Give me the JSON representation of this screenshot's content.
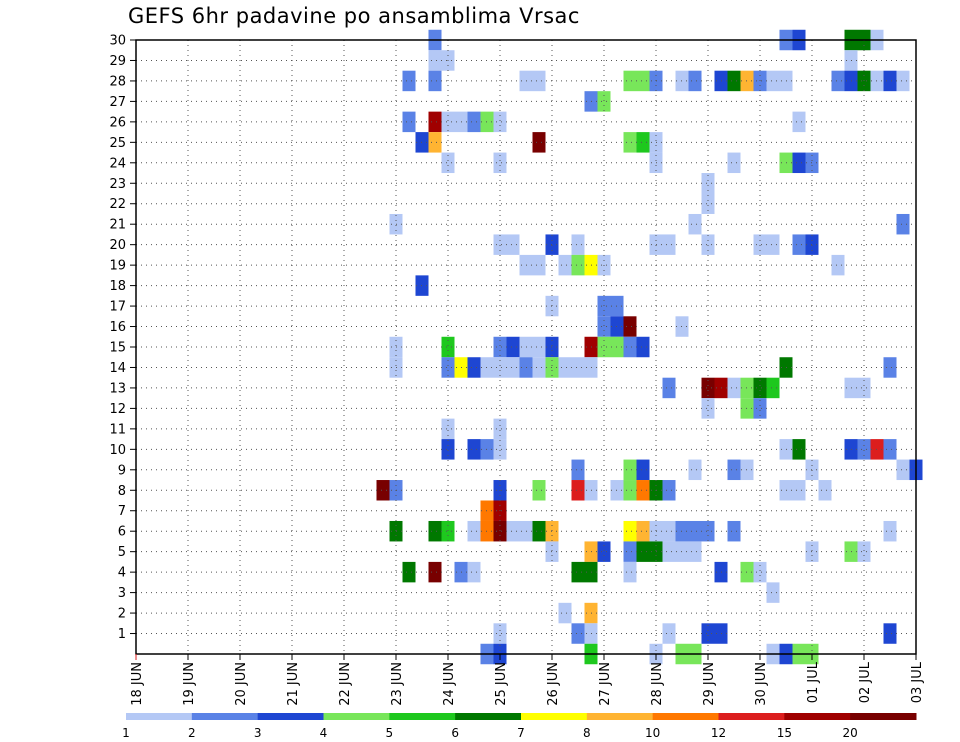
{
  "chart_data": {
    "type": "heatmap",
    "title": "GEFS 6hr padavine po ansamblima Vrsac",
    "xlabel": "",
    "ylabel": "",
    "grid": true,
    "x_tick_labels": [
      "18 JUN",
      "19 JUN",
      "20 JUN",
      "21 JUN",
      "22 JUN",
      "23 JUN",
      "24 JUN",
      "25 JUN",
      "26 JUN",
      "27 JUN",
      "28 JUN",
      "29 JUN",
      "30 JUN",
      "01 JUL",
      "02 JUL",
      "03 JUL"
    ],
    "y_tick_labels": [
      "1",
      "2",
      "3",
      "4",
      "5",
      "6",
      "7",
      "8",
      "9",
      "10",
      "11",
      "12",
      "13",
      "14",
      "15",
      "16",
      "17",
      "18",
      "19",
      "20",
      "21",
      "22",
      "23",
      "24",
      "25",
      "26",
      "27",
      "28",
      "29",
      "30"
    ],
    "x_range_days": [
      0,
      15
    ],
    "y_range": [
      0,
      30
    ],
    "colorbar": {
      "labels": [
        "1",
        "2",
        "3",
        "4",
        "5",
        "6",
        "7",
        "8",
        "10",
        "12",
        "15",
        "20"
      ],
      "colors": [
        "#b4c8f5",
        "#5a82e6",
        "#1e46d2",
        "#78e65a",
        "#1ec81e",
        "#007800",
        "#ffff00",
        "#ffb432",
        "#ff7800",
        "#dc1e1e",
        "#a00000",
        "#780000"
      ]
    },
    "cell_levels": "1..12 index into colorbar.colors; x in days from 18 JUN (6-hour steps), y = ensemble member",
    "cells": [
      [
        12.5,
        30,
        2
      ],
      [
        12.75,
        30,
        3
      ],
      [
        13.75,
        30,
        6
      ],
      [
        14.0,
        30,
        6
      ],
      [
        14.25,
        30,
        1
      ],
      [
        5.75,
        30,
        2
      ],
      [
        5.75,
        29,
        1
      ],
      [
        6.0,
        29,
        1
      ],
      [
        13.75,
        29,
        1
      ],
      [
        5.25,
        28,
        2
      ],
      [
        5.75,
        28,
        2
      ],
      [
        7.5,
        28,
        1
      ],
      [
        7.75,
        28,
        1
      ],
      [
        9.5,
        28,
        4
      ],
      [
        9.75,
        28,
        4
      ],
      [
        10.0,
        28,
        2
      ],
      [
        10.5,
        28,
        1
      ],
      [
        10.75,
        28,
        2
      ],
      [
        11.25,
        28,
        3
      ],
      [
        11.5,
        28,
        6
      ],
      [
        11.75,
        28,
        8
      ],
      [
        12.0,
        28,
        2
      ],
      [
        12.25,
        28,
        1
      ],
      [
        12.5,
        28,
        1
      ],
      [
        13.5,
        28,
        2
      ],
      [
        13.75,
        28,
        3
      ],
      [
        14.0,
        28,
        6
      ],
      [
        14.25,
        28,
        1
      ],
      [
        14.5,
        28,
        3
      ],
      [
        14.75,
        28,
        1
      ],
      [
        8.75,
        27,
        2
      ],
      [
        9.0,
        27,
        4
      ],
      [
        5.25,
        26,
        2
      ],
      [
        5.75,
        26,
        11
      ],
      [
        6.0,
        26,
        1
      ],
      [
        6.25,
        26,
        1
      ],
      [
        6.5,
        26,
        2
      ],
      [
        6.75,
        26,
        4
      ],
      [
        7.0,
        26,
        1
      ],
      [
        12.75,
        26,
        1
      ],
      [
        5.5,
        25,
        3
      ],
      [
        5.75,
        25,
        8
      ],
      [
        7.75,
        25,
        12
      ],
      [
        9.5,
        25,
        4
      ],
      [
        9.75,
        25,
        5
      ],
      [
        10.0,
        25,
        1
      ],
      [
        6.0,
        24,
        1
      ],
      [
        7.0,
        24,
        1
      ],
      [
        10.0,
        24,
        1
      ],
      [
        11.5,
        24,
        1
      ],
      [
        12.5,
        24,
        4
      ],
      [
        12.75,
        24,
        3
      ],
      [
        13.0,
        24,
        2
      ],
      [
        11.0,
        23,
        1
      ],
      [
        11.0,
        22,
        1
      ],
      [
        5.0,
        21,
        1
      ],
      [
        10.75,
        21,
        1
      ],
      [
        14.75,
        21,
        2
      ],
      [
        7.0,
        20,
        1
      ],
      [
        7.25,
        20,
        1
      ],
      [
        8.0,
        20,
        3
      ],
      [
        8.5,
        20,
        1
      ],
      [
        10.0,
        20,
        1
      ],
      [
        10.25,
        20,
        1
      ],
      [
        11.0,
        20,
        1
      ],
      [
        12.0,
        20,
        1
      ],
      [
        12.25,
        20,
        1
      ],
      [
        12.75,
        20,
        2
      ],
      [
        13.0,
        20,
        3
      ],
      [
        7.5,
        19,
        1
      ],
      [
        7.75,
        19,
        1
      ],
      [
        8.25,
        19,
        1
      ],
      [
        8.5,
        19,
        4
      ],
      [
        8.75,
        19,
        7
      ],
      [
        9.0,
        19,
        1
      ],
      [
        13.5,
        19,
        1
      ],
      [
        5.5,
        18,
        3
      ],
      [
        8.0,
        17,
        1
      ],
      [
        9.0,
        17,
        2
      ],
      [
        9.25,
        17,
        2
      ],
      [
        9.0,
        16,
        2
      ],
      [
        9.25,
        16,
        3
      ],
      [
        9.5,
        16,
        12
      ],
      [
        10.5,
        16,
        1
      ],
      [
        5.0,
        15,
        1
      ],
      [
        6.0,
        15,
        5
      ],
      [
        7.0,
        15,
        2
      ],
      [
        7.25,
        15,
        3
      ],
      [
        7.5,
        15,
        1
      ],
      [
        7.75,
        15,
        1
      ],
      [
        8.0,
        15,
        3
      ],
      [
        8.75,
        15,
        11
      ],
      [
        9.0,
        15,
        4
      ],
      [
        9.25,
        15,
        4
      ],
      [
        9.5,
        15,
        2
      ],
      [
        9.75,
        15,
        3
      ],
      [
        5.0,
        14,
        1
      ],
      [
        6.0,
        14,
        2
      ],
      [
        6.25,
        14,
        7
      ],
      [
        6.5,
        14,
        3
      ],
      [
        6.75,
        14,
        1
      ],
      [
        7.0,
        14,
        1
      ],
      [
        7.25,
        14,
        1
      ],
      [
        7.5,
        14,
        2
      ],
      [
        7.75,
        14,
        1
      ],
      [
        8.0,
        14,
        4
      ],
      [
        8.25,
        14,
        1
      ],
      [
        8.5,
        14,
        1
      ],
      [
        8.75,
        14,
        1
      ],
      [
        12.5,
        14,
        6
      ],
      [
        14.5,
        14,
        2
      ],
      [
        10.25,
        13,
        2
      ],
      [
        11.0,
        13,
        12
      ],
      [
        11.25,
        13,
        11
      ],
      [
        11.5,
        13,
        1
      ],
      [
        11.75,
        13,
        4
      ],
      [
        12.0,
        13,
        6
      ],
      [
        12.25,
        13,
        5
      ],
      [
        13.75,
        13,
        1
      ],
      [
        14.0,
        13,
        1
      ],
      [
        11.0,
        12,
        1
      ],
      [
        11.75,
        12,
        4
      ],
      [
        12.0,
        12,
        2
      ],
      [
        6.0,
        11,
        1
      ],
      [
        7.0,
        11,
        1
      ],
      [
        6.0,
        10,
        3
      ],
      [
        6.5,
        10,
        3
      ],
      [
        6.75,
        10,
        2
      ],
      [
        7.0,
        10,
        1
      ],
      [
        12.5,
        10,
        1
      ],
      [
        12.75,
        10,
        6
      ],
      [
        13.75,
        10,
        3
      ],
      [
        14.0,
        10,
        2
      ],
      [
        14.25,
        10,
        10
      ],
      [
        14.5,
        10,
        2
      ],
      [
        8.5,
        9,
        2
      ],
      [
        9.5,
        9,
        4
      ],
      [
        9.75,
        9,
        3
      ],
      [
        10.75,
        9,
        1
      ],
      [
        11.5,
        9,
        2
      ],
      [
        11.75,
        9,
        1
      ],
      [
        13.0,
        9,
        1
      ],
      [
        14.75,
        9,
        1
      ],
      [
        15.0,
        9,
        3
      ],
      [
        4.75,
        8,
        12
      ],
      [
        5.0,
        8,
        2
      ],
      [
        7.0,
        8,
        3
      ],
      [
        7.75,
        8,
        4
      ],
      [
        8.5,
        8,
        10
      ],
      [
        8.75,
        8,
        1
      ],
      [
        9.25,
        8,
        1
      ],
      [
        9.5,
        8,
        4
      ],
      [
        9.75,
        8,
        9
      ],
      [
        10.0,
        8,
        6
      ],
      [
        10.25,
        8,
        2
      ],
      [
        12.5,
        8,
        1
      ],
      [
        12.75,
        8,
        1
      ],
      [
        13.25,
        8,
        1
      ],
      [
        6.75,
        7,
        9
      ],
      [
        7.0,
        7,
        11
      ],
      [
        5.0,
        6,
        6
      ],
      [
        5.75,
        6,
        6
      ],
      [
        6.0,
        6,
        5
      ],
      [
        6.5,
        6,
        1
      ],
      [
        6.75,
        6,
        9
      ],
      [
        7.0,
        6,
        12
      ],
      [
        7.25,
        6,
        1
      ],
      [
        7.5,
        6,
        1
      ],
      [
        7.75,
        6,
        6
      ],
      [
        8.0,
        6,
        8
      ],
      [
        9.5,
        6,
        7
      ],
      [
        9.75,
        6,
        8
      ],
      [
        10.0,
        6,
        1
      ],
      [
        10.25,
        6,
        1
      ],
      [
        10.5,
        6,
        2
      ],
      [
        10.75,
        6,
        2
      ],
      [
        11.0,
        6,
        2
      ],
      [
        11.5,
        6,
        2
      ],
      [
        14.5,
        6,
        1
      ],
      [
        8.0,
        5,
        1
      ],
      [
        8.75,
        5,
        8
      ],
      [
        9.0,
        5,
        3
      ],
      [
        9.5,
        5,
        2
      ],
      [
        9.75,
        5,
        6
      ],
      [
        10.0,
        5,
        6
      ],
      [
        10.25,
        5,
        1
      ],
      [
        10.5,
        5,
        1
      ],
      [
        10.75,
        5,
        1
      ],
      [
        13.0,
        5,
        1
      ],
      [
        13.75,
        5,
        4
      ],
      [
        14.0,
        5,
        1
      ],
      [
        5.25,
        4,
        6
      ],
      [
        5.75,
        4,
        12
      ],
      [
        6.25,
        4,
        2
      ],
      [
        6.5,
        4,
        1
      ],
      [
        8.5,
        4,
        6
      ],
      [
        8.75,
        4,
        6
      ],
      [
        9.5,
        4,
        1
      ],
      [
        11.25,
        4,
        3
      ],
      [
        11.75,
        4,
        4
      ],
      [
        12.0,
        4,
        1
      ],
      [
        12.25,
        3,
        1
      ],
      [
        8.25,
        2,
        1
      ],
      [
        8.75,
        2,
        8
      ],
      [
        7.0,
        1,
        1
      ],
      [
        8.5,
        1,
        2
      ],
      [
        8.75,
        1,
        1
      ],
      [
        10.25,
        1,
        1
      ],
      [
        11.0,
        1,
        3
      ],
      [
        11.25,
        1,
        3
      ],
      [
        14.5,
        1,
        3
      ],
      [
        6.75,
        0,
        2
      ],
      [
        7.0,
        0,
        3
      ],
      [
        10.0,
        0,
        1
      ],
      [
        10.5,
        0,
        4
      ],
      [
        10.75,
        0,
        4
      ],
      [
        12.25,
        0,
        1
      ],
      [
        12.5,
        0,
        3
      ],
      [
        12.75,
        0,
        4
      ],
      [
        13.0,
        0,
        4
      ],
      [
        8.75,
        0,
        5
      ]
    ]
  }
}
